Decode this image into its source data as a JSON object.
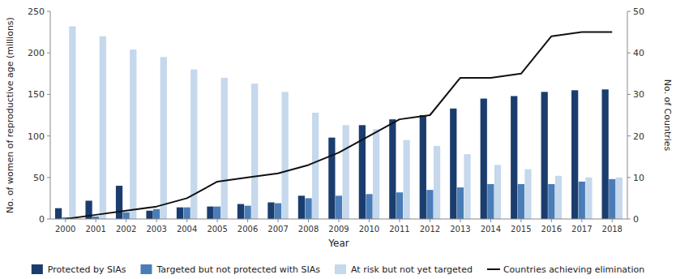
{
  "chart_data": {
    "type": "bar",
    "categories": [
      "2000",
      "2001",
      "2002",
      "2003",
      "2004",
      "2005",
      "2006",
      "2007",
      "2008",
      "2009",
      "2010",
      "2011",
      "2012",
      "2013",
      "2014",
      "2015",
      "2016",
      "2017",
      "2018"
    ],
    "series": [
      {
        "name": "Protected by SIAs",
        "color": "#1a3d6e",
        "values": [
          13,
          22,
          40,
          10,
          14,
          15,
          18,
          20,
          28,
          98,
          113,
          120,
          125,
          133,
          145,
          148,
          153,
          155,
          156
        ]
      },
      {
        "name": "Targeted but not protected with SIAs",
        "color": "#4a7db8",
        "values": [
          2,
          3,
          8,
          12,
          14,
          15,
          16,
          19,
          25,
          28,
          30,
          32,
          35,
          38,
          42,
          42,
          42,
          45,
          48
        ]
      },
      {
        "name": "At risk but not yet targeted",
        "color": "#c5d8ec",
        "values": [
          232,
          220,
          204,
          195,
          180,
          170,
          163,
          153,
          128,
          113,
          108,
          95,
          88,
          78,
          65,
          60,
          52,
          50,
          50
        ]
      },
      {
        "name": "Countries achieving elimination",
        "type": "line",
        "axis": "y2",
        "color": "#111111",
        "values": [
          0,
          1,
          2,
          3,
          5,
          9,
          10,
          11,
          13,
          16,
          20,
          24,
          25,
          34,
          34,
          35,
          44,
          45,
          45
        ]
      }
    ],
    "xlabel": "Year",
    "ylabel": "No. of women of reproductive age (millions)",
    "y2label": "No. of Countries",
    "ylim": [
      0,
      250
    ],
    "yticks": [
      0,
      50,
      100,
      150,
      200,
      250
    ],
    "y2lim": [
      0,
      50
    ],
    "y2ticks": [
      0,
      10,
      20,
      30,
      40,
      50
    ],
    "grid": false,
    "legend": "bottom"
  }
}
